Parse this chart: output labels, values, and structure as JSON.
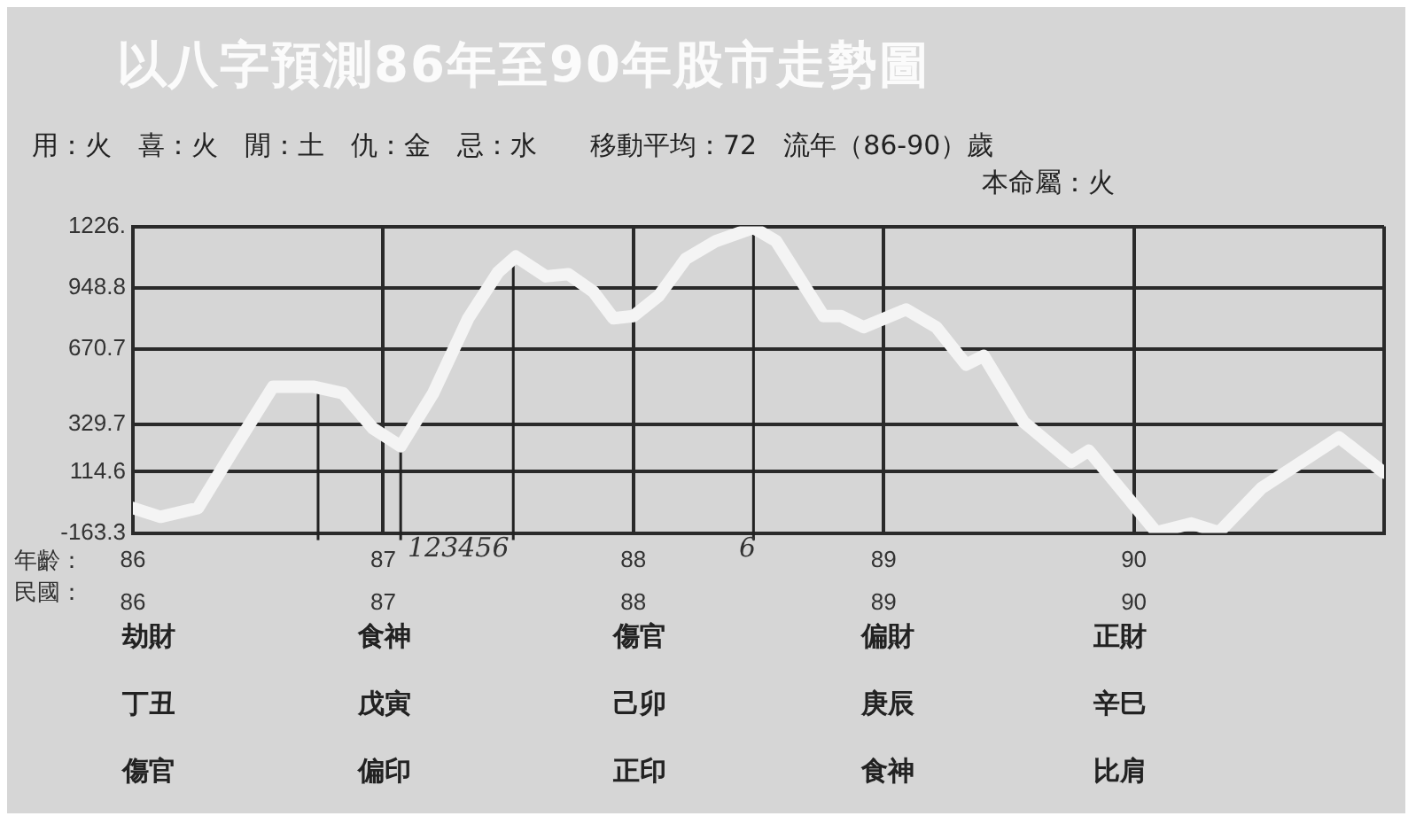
{
  "chart_data": {
    "type": "line",
    "title": "以八字預測86年至90年股市走勢圖",
    "subtitle": "用：火　喜：火　閒：土　仇：金　忌：水　　移動平均：72　流年（86-90）歲",
    "xlabel": "年齡：",
    "x2label": "民國：",
    "x": [
      86.0,
      86.11,
      86.26,
      86.4,
      86.56,
      86.72,
      86.84,
      86.96,
      87.07,
      87.2,
      87.34,
      87.46,
      87.53,
      87.65,
      87.74,
      87.84,
      87.92,
      88.0,
      88.1,
      88.21,
      88.33,
      88.48,
      88.57,
      88.76,
      88.83,
      88.92,
      89.09,
      89.21,
      89.33,
      89.4,
      89.56,
      89.75,
      89.82,
      90.09,
      90.23,
      90.34,
      90.51,
      90.82,
      91.0
    ],
    "series": [
      {
        "color": "#f4f4f4",
        "values": [
          -50,
          -90,
          -50,
          210,
          500,
          500,
          470,
          310,
          230,
          470,
          810,
          1020,
          1090,
          1000,
          1010,
          930,
          810,
          820,
          910,
          1080,
          1160,
          1220,
          1160,
          820,
          820,
          770,
          850,
          770,
          600,
          640,
          340,
          160,
          210,
          -160,
          -120,
          -160,
          40,
          270,
          110
        ]
      }
    ],
    "xlim": [
      86,
      91
    ],
    "xticks": [
      86,
      87,
      88,
      89,
      90,
      {
        "value": 91,
        "label": null
      }
    ],
    "x2lim": [
      86,
      91
    ],
    "x2ticks": [
      86,
      87,
      88,
      89,
      90,
      {
        "value": 91,
        "label": null
      }
    ],
    "ylim": [
      -163.3,
      1226
    ],
    "yticks": [
      -163.3,
      114.6,
      329.7,
      670.7,
      948.8,
      {
        "value": 1226,
        "label": "1226."
      }
    ],
    "grid": true,
    "legend": false,
    "marker": "none",
    "line_style": "solid",
    "ref_lines": [
      {
        "axis": "x",
        "value": 86.74,
        "color": "#222222"
      },
      {
        "axis": "x",
        "value": 87.07,
        "color": "#222222"
      },
      {
        "axis": "x",
        "value": 87.52,
        "color": "#222222"
      },
      {
        "axis": "x",
        "value": 88.48,
        "color": "#222222"
      }
    ],
    "annotations": [
      "本命屬：火",
      "123456",
      "6",
      "劫財",
      "食神",
      "傷官",
      "偏財",
      "正財",
      "丁丑",
      "戊寅",
      "己卯",
      "庚辰",
      "辛巳",
      "傷官",
      "偏印",
      "正印",
      "食神",
      "比肩"
    ]
  }
}
